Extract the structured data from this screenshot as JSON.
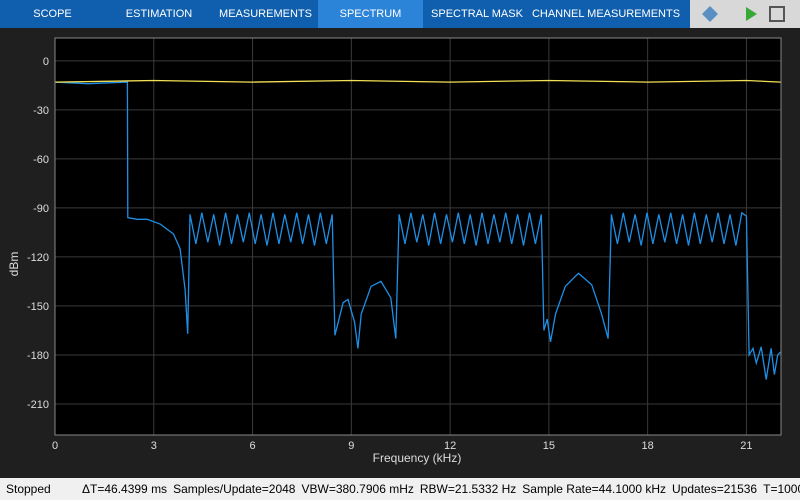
{
  "toolbar": {
    "tabs": [
      "SCOPE",
      "ESTIMATION",
      "MEASUREMENTS",
      "SPECTRUM",
      "SPECTRAL MASK",
      "CHANNEL MEASUREMENTS"
    ]
  },
  "status_bar": {
    "state": "Stopped",
    "items": [
      "ΔT=46.4399 ms",
      "Samples/Update=2048",
      "VBW=380.7906 mHz",
      "RBW=21.5332 Hz",
      "Sample Rate=44.1000 kHz",
      "Updates=21536",
      "T=1000"
    ]
  },
  "chart_data": {
    "type": "line",
    "x_label": "Frequency (kHz)",
    "y_label": "dBm",
    "xlim": [
      0,
      22.05
    ],
    "xticks": [
      0,
      3,
      6,
      9,
      12,
      15,
      18,
      21
    ],
    "ylim": [
      -229,
      14
    ],
    "yticks": [
      0,
      -30,
      -60,
      -90,
      -120,
      -150,
      -180,
      -210
    ],
    "grid": true,
    "series": [
      {
        "color": "#1f8fe6",
        "x": [
          0,
          1,
          2.2,
          2.21,
          2.5,
          2.8,
          3.2,
          3.6,
          3.8,
          3.95,
          4.03,
          4.1,
          4.28,
          4.46,
          4.64,
          4.82,
          5.0,
          5.18,
          5.36,
          5.54,
          5.72,
          5.9,
          6.08,
          6.26,
          6.44,
          6.62,
          6.8,
          6.98,
          7.16,
          7.34,
          7.52,
          7.7,
          7.88,
          8.06,
          8.24,
          8.42,
          8.5,
          8.6,
          8.75,
          8.9,
          9.1,
          9.2,
          9.3,
          9.6,
          9.9,
          10.2,
          10.35,
          10.45,
          10.63,
          10.81,
          10.99,
          11.17,
          11.35,
          11.53,
          11.71,
          11.89,
          12.07,
          12.25,
          12.43,
          12.61,
          12.79,
          12.97,
          13.15,
          13.33,
          13.51,
          13.69,
          13.87,
          14.05,
          14.23,
          14.41,
          14.59,
          14.77,
          14.85,
          14.95,
          15.05,
          15.2,
          15.5,
          15.9,
          16.3,
          16.6,
          16.8,
          16.9,
          17.08,
          17.26,
          17.44,
          17.62,
          17.8,
          17.98,
          18.16,
          18.34,
          18.52,
          18.7,
          18.88,
          19.06,
          19.24,
          19.42,
          19.6,
          19.78,
          19.96,
          20.14,
          20.32,
          20.5,
          20.68,
          20.86,
          21.0,
          21.08,
          21.2,
          21.3,
          21.45,
          21.6,
          21.75,
          21.85,
          21.95,
          22.05
        ],
        "values": [
          -13,
          -14,
          -13,
          -96,
          -97,
          -97,
          -100,
          -106,
          -115,
          -140,
          -167,
          -94,
          -112,
          -93,
          -111,
          -94,
          -113,
          -93,
          -112,
          -94,
          -111,
          -93,
          -112,
          -94,
          -113,
          -93,
          -112,
          -94,
          -111,
          -93,
          -112,
          -94,
          -113,
          -93,
          -112,
          -94,
          -168,
          -160,
          -148,
          -146,
          -160,
          -176,
          -155,
          -138,
          -135,
          -145,
          -170,
          -94,
          -112,
          -93,
          -111,
          -94,
          -113,
          -93,
          -112,
          -94,
          -111,
          -93,
          -112,
          -94,
          -113,
          -93,
          -112,
          -94,
          -111,
          -93,
          -112,
          -94,
          -113,
          -93,
          -112,
          -94,
          -165,
          -158,
          -172,
          -155,
          -138,
          -130,
          -137,
          -155,
          -170,
          -94,
          -112,
          -93,
          -111,
          -94,
          -113,
          -93,
          -112,
          -94,
          -111,
          -93,
          -112,
          -94,
          -113,
          -93,
          -112,
          -94,
          -111,
          -93,
          -112,
          -94,
          -113,
          -93,
          -95,
          -180,
          -176,
          -185,
          -175,
          -195,
          -176,
          -192,
          -180,
          -178
        ]
      },
      {
        "color": "#f2e055",
        "x": [
          0,
          3,
          6,
          9,
          12,
          15,
          18,
          21,
          22.05
        ],
        "values": [
          -13,
          -12,
          -13,
          -12,
          -13,
          -12,
          -13,
          -12,
          -13
        ]
      }
    ]
  }
}
